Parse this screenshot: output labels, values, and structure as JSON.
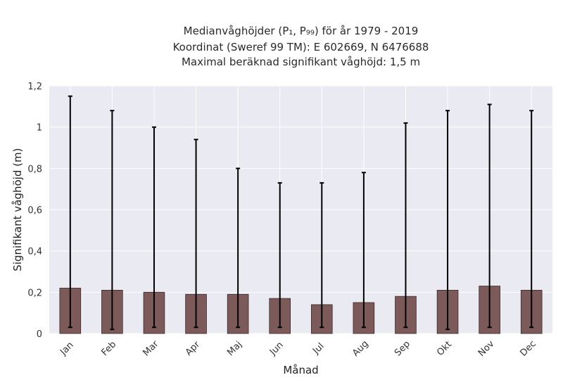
{
  "chart_data": {
    "type": "bar",
    "title_lines": [
      "Medianvåghöjder (P₁, P₉₉) för år 1979 - 2019",
      "Koordinat (Sweref 99 TM): E 602669, N 6476688",
      "Maximal beräknad signifikant våghöjd: 1,5 m"
    ],
    "xlabel": "Månad",
    "ylabel": "Signifikant våghöjd (m)",
    "categories": [
      "Jan",
      "Feb",
      "Mar",
      "Apr",
      "Maj",
      "Jun",
      "Jul",
      "Aug",
      "Sep",
      "Okt",
      "Nov",
      "Dec"
    ],
    "values": [
      0.22,
      0.21,
      0.2,
      0.19,
      0.19,
      0.17,
      0.14,
      0.15,
      0.18,
      0.21,
      0.23,
      0.21
    ],
    "p1": [
      0.03,
      0.02,
      0.03,
      0.03,
      0.03,
      0.03,
      0.03,
      0.03,
      0.03,
      0.02,
      0.03,
      0.03
    ],
    "p99": [
      1.15,
      1.08,
      1.0,
      0.94,
      0.8,
      0.73,
      0.73,
      0.78,
      1.02,
      1.08,
      1.11,
      1.08
    ],
    "ylim": [
      0,
      1.2
    ],
    "yticks": [
      0,
      0.2,
      0.4,
      0.6,
      0.8,
      1,
      1.2
    ],
    "ytick_labels": [
      "0",
      "0,2",
      "0,4",
      "0,6",
      "0,8",
      "1",
      "1,2"
    ],
    "grid": true,
    "colors": {
      "bar": "#7d5a5a",
      "bar_edge": "#3a2a2a",
      "plot_bg": "#eaeaf2",
      "grid": "#ffffff",
      "error_bar": "#000000"
    }
  }
}
